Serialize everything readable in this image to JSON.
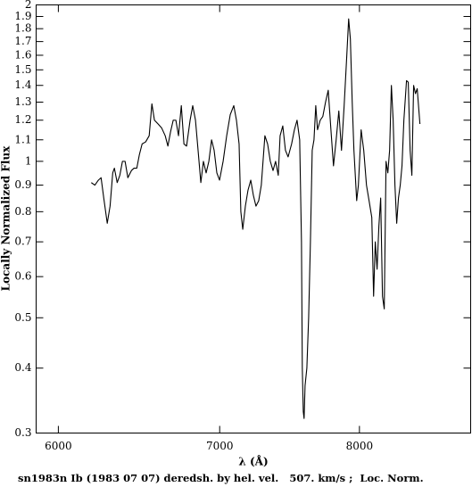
{
  "chart_data": {
    "type": "line",
    "xlabel": "λ (Å)",
    "ylabel": "Locally Normalized Flux",
    "footer": "sn1983n Ib (1983 07 07) deredsh. by hel. vel.   507. km/s ;  Loc. Norm.",
    "xscale": "log",
    "yscale": "log",
    "xlim": [
      5874,
      8897
    ],
    "ylim": [
      0.3,
      2
    ],
    "xticks": [
      6000,
      7000,
      8000
    ],
    "yticks": [
      0.3,
      0.4,
      0.5,
      0.6,
      0.7,
      0.8,
      0.9,
      1,
      1.1,
      1.2,
      1.3,
      1.4,
      1.5,
      1.6,
      1.7,
      1.8,
      1.9,
      2
    ],
    "color": "#000000",
    "x": [
      6192,
      6213,
      6234,
      6250,
      6266,
      6287,
      6304,
      6320,
      6330,
      6347,
      6363,
      6379,
      6395,
      6412,
      6434,
      6450,
      6467,
      6483,
      6500,
      6522,
      6544,
      6561,
      6577,
      6600,
      6622,
      6645,
      6662,
      6679,
      6696,
      6713,
      6730,
      6748,
      6765,
      6782,
      6805,
      6822,
      6840,
      6857,
      6875,
      6892,
      6910,
      6928,
      6946,
      6963,
      6981,
      6999,
      7023,
      7047,
      7071,
      7095,
      7113,
      7131,
      7143,
      7156,
      7174,
      7192,
      7211,
      7229,
      7247,
      7266,
      7284,
      7309,
      7328,
      7347,
      7366,
      7384,
      7403,
      7416,
      7435,
      7454,
      7473,
      7498,
      7518,
      7537,
      7556,
      7569,
      7575,
      7582,
      7588,
      7595,
      7608,
      7621,
      7634,
      7647,
      7660,
      7673,
      7686,
      7706,
      7725,
      7745,
      7765,
      7785,
      7804,
      7824,
      7844,
      7864,
      7884,
      7904,
      7918,
      7931,
      7945,
      7958,
      7979,
      7992,
      8013,
      8033,
      8054,
      8074,
      8095,
      8109,
      8122,
      8136,
      8150,
      8164,
      8178,
      8192,
      8206,
      8220,
      8234,
      8248,
      8262,
      8276,
      8290,
      8304,
      8318,
      8332,
      8347,
      8368,
      8382,
      8397,
      8411,
      8425,
      8440,
      8454,
      8476
    ],
    "values": [
      0.91,
      0.9,
      0.92,
      0.93,
      0.85,
      0.76,
      0.82,
      0.95,
      0.97,
      0.91,
      0.94,
      1.0,
      1.0,
      0.93,
      0.96,
      0.97,
      0.97,
      1.03,
      1.08,
      1.09,
      1.12,
      1.29,
      1.2,
      1.18,
      1.16,
      1.12,
      1.07,
      1.14,
      1.2,
      1.2,
      1.12,
      1.28,
      1.08,
      1.07,
      1.2,
      1.28,
      1.2,
      1.05,
      0.91,
      1.0,
      0.95,
      1.0,
      1.1,
      1.05,
      0.95,
      0.92,
      1.0,
      1.12,
      1.23,
      1.28,
      1.2,
      1.08,
      0.8,
      0.74,
      0.82,
      0.88,
      0.92,
      0.86,
      0.82,
      0.84,
      0.9,
      1.12,
      1.08,
      1.0,
      0.96,
      1.0,
      0.94,
      1.12,
      1.17,
      1.05,
      1.02,
      1.08,
      1.15,
      1.2,
      1.1,
      0.7,
      0.4,
      0.33,
      0.32,
      0.37,
      0.4,
      0.5,
      0.7,
      1.05,
      1.1,
      1.28,
      1.15,
      1.2,
      1.22,
      1.3,
      1.37,
      1.15,
      0.98,
      1.1,
      1.25,
      1.05,
      1.28,
      1.6,
      1.88,
      1.72,
      1.3,
      1.05,
      0.84,
      0.9,
      1.15,
      1.05,
      0.9,
      0.84,
      0.78,
      0.55,
      0.7,
      0.62,
      0.75,
      0.85,
      0.55,
      0.52,
      1.0,
      0.95,
      1.05,
      1.4,
      1.2,
      0.9,
      0.76,
      0.85,
      0.9,
      0.98,
      1.2,
      1.43,
      1.42,
      1.05,
      0.94,
      1.4,
      1.35,
      1.38,
      1.18
    ]
  }
}
